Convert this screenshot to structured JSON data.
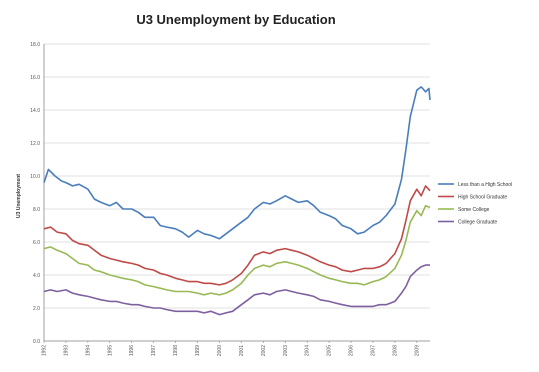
{
  "chart_data": {
    "type": "line",
    "title": "U3 Unemployment by Education",
    "xlabel": "",
    "ylabel": "U3 Unemployment",
    "ylim": [
      0,
      18
    ],
    "yticks": [
      "0.0",
      "2.0",
      "4.0",
      "6.0",
      "8.0",
      "10.0",
      "12.0",
      "14.0",
      "16.0",
      "18.0"
    ],
    "xticks": [
      "1992",
      "1993",
      "1994",
      "1995",
      "1996",
      "1997",
      "1998",
      "1999",
      "2000",
      "2001",
      "2002",
      "2003",
      "2004",
      "2005",
      "2006",
      "2007",
      "2008",
      "2009"
    ],
    "xlim": [
      1992.0,
      2009.6
    ],
    "grid": true,
    "legend_position": "right",
    "series": [
      {
        "name": "Less than a High School",
        "color": "#4a7ebb",
        "points": [
          [
            1992.0,
            9.6
          ],
          [
            1992.2,
            10.4
          ],
          [
            1992.5,
            10.0
          ],
          [
            1992.8,
            9.7
          ],
          [
            1993.0,
            9.6
          ],
          [
            1993.3,
            9.4
          ],
          [
            1993.6,
            9.5
          ],
          [
            1994.0,
            9.2
          ],
          [
            1994.3,
            8.6
          ],
          [
            1994.6,
            8.4
          ],
          [
            1995.0,
            8.2
          ],
          [
            1995.3,
            8.4
          ],
          [
            1995.6,
            8.0
          ],
          [
            1996.0,
            8.0
          ],
          [
            1996.3,
            7.8
          ],
          [
            1996.6,
            7.5
          ],
          [
            1997.0,
            7.5
          ],
          [
            1997.3,
            7.0
          ],
          [
            1997.6,
            6.9
          ],
          [
            1998.0,
            6.8
          ],
          [
            1998.3,
            6.6
          ],
          [
            1998.6,
            6.3
          ],
          [
            1999.0,
            6.7
          ],
          [
            1999.3,
            6.5
          ],
          [
            1999.6,
            6.4
          ],
          [
            2000.0,
            6.2
          ],
          [
            2000.3,
            6.5
          ],
          [
            2000.6,
            6.8
          ],
          [
            2001.0,
            7.2
          ],
          [
            2001.3,
            7.5
          ],
          [
            2001.6,
            8.0
          ],
          [
            2002.0,
            8.4
          ],
          [
            2002.3,
            8.3
          ],
          [
            2002.6,
            8.5
          ],
          [
            2003.0,
            8.8
          ],
          [
            2003.3,
            8.6
          ],
          [
            2003.6,
            8.4
          ],
          [
            2004.0,
            8.5
          ],
          [
            2004.3,
            8.2
          ],
          [
            2004.6,
            7.8
          ],
          [
            2005.0,
            7.6
          ],
          [
            2005.3,
            7.4
          ],
          [
            2005.6,
            7.0
          ],
          [
            2006.0,
            6.8
          ],
          [
            2006.3,
            6.5
          ],
          [
            2006.6,
            6.6
          ],
          [
            2007.0,
            7.0
          ],
          [
            2007.3,
            7.2
          ],
          [
            2007.6,
            7.6
          ],
          [
            2008.0,
            8.3
          ],
          [
            2008.3,
            9.8
          ],
          [
            2008.5,
            11.6
          ],
          [
            2008.7,
            13.6
          ],
          [
            2009.0,
            15.2
          ],
          [
            2009.2,
            15.4
          ],
          [
            2009.4,
            15.1
          ],
          [
            2009.55,
            15.3
          ],
          [
            2009.6,
            14.6
          ]
        ]
      },
      {
        "name": "High School Graduate",
        "color": "#be4b48",
        "points": [
          [
            1992.0,
            6.8
          ],
          [
            1992.3,
            6.9
          ],
          [
            1992.6,
            6.6
          ],
          [
            1993.0,
            6.5
          ],
          [
            1993.3,
            6.1
          ],
          [
            1993.6,
            5.9
          ],
          [
            1994.0,
            5.8
          ],
          [
            1994.3,
            5.5
          ],
          [
            1994.6,
            5.2
          ],
          [
            1995.0,
            5.0
          ],
          [
            1995.3,
            4.9
          ],
          [
            1995.6,
            4.8
          ],
          [
            1996.0,
            4.7
          ],
          [
            1996.3,
            4.6
          ],
          [
            1996.6,
            4.4
          ],
          [
            1997.0,
            4.3
          ],
          [
            1997.3,
            4.1
          ],
          [
            1997.6,
            4.0
          ],
          [
            1998.0,
            3.8
          ],
          [
            1998.3,
            3.7
          ],
          [
            1998.6,
            3.6
          ],
          [
            1999.0,
            3.6
          ],
          [
            1999.3,
            3.5
          ],
          [
            1999.6,
            3.5
          ],
          [
            2000.0,
            3.4
          ],
          [
            2000.3,
            3.5
          ],
          [
            2000.6,
            3.7
          ],
          [
            2001.0,
            4.1
          ],
          [
            2001.3,
            4.6
          ],
          [
            2001.6,
            5.2
          ],
          [
            2002.0,
            5.4
          ],
          [
            2002.3,
            5.3
          ],
          [
            2002.6,
            5.5
          ],
          [
            2003.0,
            5.6
          ],
          [
            2003.3,
            5.5
          ],
          [
            2003.6,
            5.4
          ],
          [
            2004.0,
            5.2
          ],
          [
            2004.3,
            5.0
          ],
          [
            2004.6,
            4.8
          ],
          [
            2005.0,
            4.6
          ],
          [
            2005.3,
            4.5
          ],
          [
            2005.6,
            4.3
          ],
          [
            2006.0,
            4.2
          ],
          [
            2006.3,
            4.3
          ],
          [
            2006.6,
            4.4
          ],
          [
            2007.0,
            4.4
          ],
          [
            2007.3,
            4.5
          ],
          [
            2007.6,
            4.7
          ],
          [
            2008.0,
            5.3
          ],
          [
            2008.3,
            6.2
          ],
          [
            2008.5,
            7.3
          ],
          [
            2008.7,
            8.5
          ],
          [
            2009.0,
            9.2
          ],
          [
            2009.2,
            8.8
          ],
          [
            2009.4,
            9.4
          ],
          [
            2009.6,
            9.1
          ]
        ]
      },
      {
        "name": "Some College",
        "color": "#98b954",
        "points": [
          [
            1992.0,
            5.6
          ],
          [
            1992.3,
            5.7
          ],
          [
            1992.6,
            5.5
          ],
          [
            1993.0,
            5.3
          ],
          [
            1993.3,
            5.0
          ],
          [
            1993.6,
            4.7
          ],
          [
            1994.0,
            4.6
          ],
          [
            1994.3,
            4.3
          ],
          [
            1994.6,
            4.2
          ],
          [
            1995.0,
            4.0
          ],
          [
            1995.3,
            3.9
          ],
          [
            1995.6,
            3.8
          ],
          [
            1996.0,
            3.7
          ],
          [
            1996.3,
            3.6
          ],
          [
            1996.6,
            3.4
          ],
          [
            1997.0,
            3.3
          ],
          [
            1997.3,
            3.2
          ],
          [
            1997.6,
            3.1
          ],
          [
            1998.0,
            3.0
          ],
          [
            1998.3,
            3.0
          ],
          [
            1998.6,
            3.0
          ],
          [
            1999.0,
            2.9
          ],
          [
            1999.3,
            2.8
          ],
          [
            1999.6,
            2.9
          ],
          [
            2000.0,
            2.8
          ],
          [
            2000.3,
            2.9
          ],
          [
            2000.6,
            3.1
          ],
          [
            2001.0,
            3.5
          ],
          [
            2001.3,
            4.0
          ],
          [
            2001.6,
            4.4
          ],
          [
            2002.0,
            4.6
          ],
          [
            2002.3,
            4.5
          ],
          [
            2002.6,
            4.7
          ],
          [
            2003.0,
            4.8
          ],
          [
            2003.3,
            4.7
          ],
          [
            2003.6,
            4.6
          ],
          [
            2004.0,
            4.4
          ],
          [
            2004.3,
            4.2
          ],
          [
            2004.6,
            4.0
          ],
          [
            2005.0,
            3.8
          ],
          [
            2005.3,
            3.7
          ],
          [
            2005.6,
            3.6
          ],
          [
            2006.0,
            3.5
          ],
          [
            2006.3,
            3.5
          ],
          [
            2006.6,
            3.4
          ],
          [
            2007.0,
            3.6
          ],
          [
            2007.3,
            3.7
          ],
          [
            2007.6,
            3.9
          ],
          [
            2008.0,
            4.4
          ],
          [
            2008.3,
            5.2
          ],
          [
            2008.5,
            6.1
          ],
          [
            2008.7,
            7.2
          ],
          [
            2009.0,
            7.9
          ],
          [
            2009.2,
            7.6
          ],
          [
            2009.4,
            8.2
          ],
          [
            2009.6,
            8.1
          ]
        ]
      },
      {
        "name": "College Graduate",
        "color": "#7d60a0",
        "points": [
          [
            1992.0,
            3.0
          ],
          [
            1992.3,
            3.1
          ],
          [
            1992.6,
            3.0
          ],
          [
            1993.0,
            3.1
          ],
          [
            1993.3,
            2.9
          ],
          [
            1993.6,
            2.8
          ],
          [
            1994.0,
            2.7
          ],
          [
            1994.3,
            2.6
          ],
          [
            1994.6,
            2.5
          ],
          [
            1995.0,
            2.4
          ],
          [
            1995.3,
            2.4
          ],
          [
            1995.6,
            2.3
          ],
          [
            1996.0,
            2.2
          ],
          [
            1996.3,
            2.2
          ],
          [
            1996.6,
            2.1
          ],
          [
            1997.0,
            2.0
          ],
          [
            1997.3,
            2.0
          ],
          [
            1997.6,
            1.9
          ],
          [
            1998.0,
            1.8
          ],
          [
            1998.3,
            1.8
          ],
          [
            1998.6,
            1.8
          ],
          [
            1999.0,
            1.8
          ],
          [
            1999.3,
            1.7
          ],
          [
            1999.6,
            1.8
          ],
          [
            2000.0,
            1.6
          ],
          [
            2000.3,
            1.7
          ],
          [
            2000.6,
            1.8
          ],
          [
            2001.0,
            2.2
          ],
          [
            2001.3,
            2.5
          ],
          [
            2001.6,
            2.8
          ],
          [
            2002.0,
            2.9
          ],
          [
            2002.3,
            2.8
          ],
          [
            2002.6,
            3.0
          ],
          [
            2003.0,
            3.1
          ],
          [
            2003.3,
            3.0
          ],
          [
            2003.6,
            2.9
          ],
          [
            2004.0,
            2.8
          ],
          [
            2004.3,
            2.7
          ],
          [
            2004.6,
            2.5
          ],
          [
            2005.0,
            2.4
          ],
          [
            2005.3,
            2.3
          ],
          [
            2005.6,
            2.2
          ],
          [
            2006.0,
            2.1
          ],
          [
            2006.3,
            2.1
          ],
          [
            2006.6,
            2.1
          ],
          [
            2007.0,
            2.1
          ],
          [
            2007.3,
            2.2
          ],
          [
            2007.6,
            2.2
          ],
          [
            2008.0,
            2.4
          ],
          [
            2008.3,
            2.9
          ],
          [
            2008.5,
            3.3
          ],
          [
            2008.7,
            3.9
          ],
          [
            2009.0,
            4.3
          ],
          [
            2009.2,
            4.5
          ],
          [
            2009.4,
            4.6
          ],
          [
            2009.6,
            4.6
          ]
        ]
      }
    ]
  }
}
